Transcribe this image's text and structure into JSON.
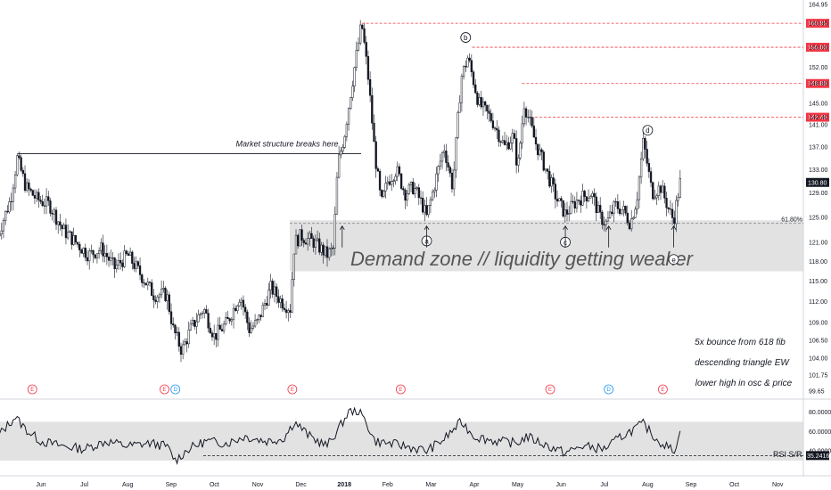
{
  "chart_data": {
    "type": "candlestick",
    "price_axis": {
      "ticks": [
        "164.95",
        "160.95",
        "156.00",
        "152.00",
        "148.80",
        "145.00",
        "142.40",
        "141.00",
        "137.00",
        "133.00",
        "130.80",
        "129.00",
        "125.00",
        "121.00",
        "118.00",
        "115.00",
        "112.00",
        "109.00",
        "106.50",
        "104.00",
        "101.75",
        "99.65"
      ],
      "ylim": [
        99.65,
        164.95
      ],
      "scale": "log"
    },
    "time_axis": {
      "labels": [
        "Jun",
        "Jul",
        "Aug",
        "Sep",
        "Oct",
        "Nov",
        "Dec",
        "2018",
        "Feb",
        "Mar",
        "Apr",
        "May",
        "Jun",
        "Jul",
        "Aug",
        "Sep",
        "Oct",
        "Nov"
      ],
      "bold_label": "2018"
    },
    "resistance_levels": [
      {
        "price": 160.95,
        "label": "160.95",
        "color": "#f23645"
      },
      {
        "price": 156.0,
        "label": "156.00",
        "color": "#f23645"
      },
      {
        "price": 148.8,
        "label": "148.80",
        "color": "#f23645"
      },
      {
        "price": 142.4,
        "label": "142.40",
        "color": "#f23645"
      }
    ],
    "last_price": {
      "value": 130.8,
      "label": "130.80"
    },
    "fib_level": {
      "label": "61.80%",
      "price": 124.0
    },
    "demand_zone": {
      "top": 124.5,
      "bottom": 116.5,
      "label": "Demand zone // liquidity getting weaker"
    },
    "structure_line": {
      "price": 135.8,
      "label": "Market structure breaks here"
    },
    "wave_labels": [
      {
        "label": "b",
        "month": 9.8,
        "price": 158.0
      },
      {
        "label": "d",
        "month": 14.0,
        "price": 140.0
      },
      {
        "label": "a",
        "month": 8.9,
        "price": 121.2
      },
      {
        "label": "c",
        "month": 12.1,
        "price": 121.0
      },
      {
        "label": "e",
        "month": 14.6,
        "price": 118.3
      }
    ],
    "bounce_arrows_months": [
      6.95,
      8.9,
      12.1,
      13.1,
      14.6
    ],
    "annotations": [
      "5x bounce from 618 fib",
      "descending triangle EW",
      "lower high in osc & price"
    ],
    "events": [
      {
        "label": "E",
        "month": -0.2,
        "color": "#f23645"
      },
      {
        "label": "E",
        "month": 2.85,
        "color": "#f23645"
      },
      {
        "label": "D",
        "month": 3.1,
        "color": "#2196f3"
      },
      {
        "label": "E",
        "month": 5.8,
        "color": "#f23645"
      },
      {
        "label": "E",
        "month": 8.3,
        "color": "#f23645"
      },
      {
        "label": "E",
        "month": 11.75,
        "color": "#f23645"
      },
      {
        "label": "D",
        "month": 13.1,
        "color": "#2196f3"
      },
      {
        "label": "E",
        "month": 14.35,
        "color": "#f23645"
      }
    ],
    "rsi": {
      "name": "RSI S/R",
      "ticks": [
        "80.0000",
        "60.0000",
        "40.0000"
      ],
      "ylim": [
        20,
        85
      ],
      "band": [
        30,
        70
      ],
      "support_label": "35.2416",
      "support_value": 35.24
    },
    "price_path": [
      [
        -1.0,
        122
      ],
      [
        -0.7,
        128
      ],
      [
        -0.55,
        135
      ],
      [
        -0.35,
        130
      ],
      [
        -0.1,
        128
      ],
      [
        0.2,
        127
      ],
      [
        0.5,
        123
      ],
      [
        0.8,
        121
      ],
      [
        1.1,
        119
      ],
      [
        1.4,
        120
      ],
      [
        1.7,
        117
      ],
      [
        2.0,
        119
      ],
      [
        2.3,
        116
      ],
      [
        2.6,
        113
      ],
      [
        2.9,
        113
      ],
      [
        3.05,
        108
      ],
      [
        3.25,
        105
      ],
      [
        3.45,
        108
      ],
      [
        3.75,
        111
      ],
      [
        4.0,
        107
      ],
      [
        4.3,
        109
      ],
      [
        4.6,
        113
      ],
      [
        4.8,
        108
      ],
      [
        5.0,
        109
      ],
      [
        5.3,
        114
      ],
      [
        5.55,
        112
      ],
      [
        5.75,
        111
      ],
      [
        5.85,
        121
      ],
      [
        6.0,
        122
      ],
      [
        6.3,
        121
      ],
      [
        6.6,
        119
      ],
      [
        6.75,
        120
      ],
      [
        6.85,
        134
      ],
      [
        7.0,
        139
      ],
      [
        7.2,
        150
      ],
      [
        7.4,
        161
      ],
      [
        7.55,
        150
      ],
      [
        7.7,
        136
      ],
      [
        7.85,
        127
      ],
      [
        8.0,
        131
      ],
      [
        8.2,
        133
      ],
      [
        8.4,
        129
      ],
      [
        8.6,
        130
      ],
      [
        8.8,
        127
      ],
      [
        8.9,
        125
      ],
      [
        9.1,
        131
      ],
      [
        9.3,
        137
      ],
      [
        9.5,
        130
      ],
      [
        9.7,
        150
      ],
      [
        9.85,
        154
      ],
      [
        10.1,
        145
      ],
      [
        10.4,
        142
      ],
      [
        10.7,
        137
      ],
      [
        10.9,
        139
      ],
      [
        11.0,
        133
      ],
      [
        11.15,
        145
      ],
      [
        11.4,
        138
      ],
      [
        11.7,
        132
      ],
      [
        11.9,
        128
      ],
      [
        12.1,
        125.5
      ],
      [
        12.4,
        128
      ],
      [
        12.7,
        129
      ],
      [
        12.9,
        125
      ],
      [
        13.05,
        124
      ],
      [
        13.25,
        127
      ],
      [
        13.45,
        126
      ],
      [
        13.6,
        124
      ],
      [
        13.75,
        128
      ],
      [
        13.9,
        138
      ],
      [
        14.1,
        129
      ],
      [
        14.3,
        130
      ],
      [
        14.5,
        126
      ],
      [
        14.6,
        124.5
      ],
      [
        14.75,
        130.8
      ]
    ],
    "rsi_path": [
      [
        -1.0,
        55
      ],
      [
        -0.6,
        75
      ],
      [
        -0.3,
        60
      ],
      [
        0.0,
        50
      ],
      [
        0.5,
        45
      ],
      [
        1.0,
        42
      ],
      [
        1.5,
        50
      ],
      [
        2.0,
        45
      ],
      [
        2.5,
        48
      ],
      [
        2.9,
        45
      ],
      [
        3.1,
        30
      ],
      [
        3.4,
        42
      ],
      [
        3.8,
        50
      ],
      [
        4.3,
        48
      ],
      [
        4.7,
        55
      ],
      [
        5.2,
        50
      ],
      [
        5.6,
        53
      ],
      [
        5.85,
        70
      ],
      [
        6.2,
        55
      ],
      [
        6.6,
        45
      ],
      [
        6.9,
        65
      ],
      [
        7.1,
        80
      ],
      [
        7.3,
        82
      ],
      [
        7.5,
        70
      ],
      [
        7.7,
        50
      ],
      [
        8.0,
        48
      ],
      [
        8.4,
        45
      ],
      [
        8.9,
        40
      ],
      [
        9.3,
        52
      ],
      [
        9.7,
        70
      ],
      [
        10.0,
        55
      ],
      [
        10.5,
        50
      ],
      [
        11.0,
        48
      ],
      [
        11.2,
        55
      ],
      [
        11.7,
        45
      ],
      [
        12.1,
        38
      ],
      [
        12.5,
        45
      ],
      [
        13.0,
        42
      ],
      [
        13.4,
        55
      ],
      [
        13.9,
        68
      ],
      [
        14.2,
        52
      ],
      [
        14.6,
        40
      ],
      [
        14.75,
        58
      ]
    ]
  }
}
